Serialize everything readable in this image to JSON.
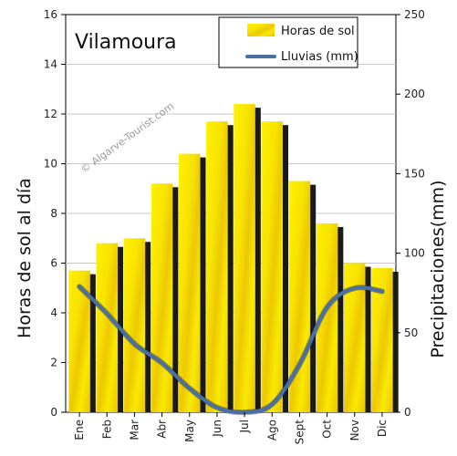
{
  "chart_data": {
    "type": "bar",
    "title": "Vilamoura",
    "watermark": "© Algarve-Tourist.com",
    "categories": [
      "Ene",
      "Feb",
      "Mar",
      "Abr",
      "May",
      "Jun",
      "Jul",
      "Ago",
      "Sept",
      "Oct",
      "Nov",
      "Dic"
    ],
    "series": [
      {
        "name": "Horas de sol",
        "type": "bar",
        "axis": "left",
        "color": "#f5e800",
        "values": [
          5.7,
          6.8,
          7.0,
          9.2,
          10.4,
          11.7,
          12.4,
          11.7,
          9.3,
          7.6,
          6.0,
          5.8
        ]
      },
      {
        "name": "Lluvias (mm)",
        "type": "line",
        "axis": "right",
        "color": "#4a6fa5",
        "values": [
          79,
          62,
          43,
          31,
          15,
          3,
          0,
          5,
          30,
          66,
          78,
          76
        ]
      }
    ],
    "ylabel": "Horas de sol al día",
    "y2label": "Precipitaciones(mm)",
    "ylim": [
      0,
      16
    ],
    "yticks": [
      "0",
      "2",
      "4",
      "6",
      "8",
      "10",
      "12",
      "14",
      "16"
    ],
    "y2lim": [
      0,
      250
    ],
    "y2ticks": [
      "0",
      "50",
      "100",
      "150",
      "200",
      "250"
    ],
    "grid": true,
    "legend_position": "top-right"
  }
}
